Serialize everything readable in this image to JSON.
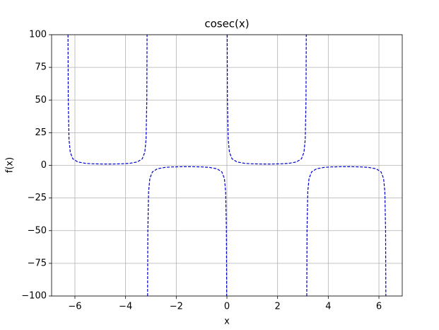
{
  "chart_data": {
    "type": "line",
    "title": "cosec(x)",
    "xlabel": "x",
    "ylabel": "f(x)",
    "x": [
      -6.2732,
      -6.2632,
      -6.2332,
      -6.1832,
      -6.0832,
      -5.8832,
      -5.5832,
      -5.2832,
      -4.9832,
      -4.7124,
      -4.4416,
      -4.1416,
      -3.8416,
      -3.5416,
      -3.3416,
      -3.2416,
      -3.1916,
      -3.1616,
      -3.1516,
      null,
      -3.1316,
      -3.1216,
      -3.0916,
      -3.0416,
      -2.9416,
      -2.7416,
      -2.4416,
      -2.1416,
      -1.8416,
      -1.5708,
      -1.3,
      -1.0,
      -0.7,
      -0.4,
      -0.2,
      -0.1,
      -0.05,
      -0.02,
      -0.01,
      null,
      0.01,
      0.02,
      0.05,
      0.1,
      0.2,
      0.4,
      0.7,
      1.0,
      1.3,
      1.5708,
      1.8416,
      2.1416,
      2.4416,
      2.7416,
      2.9416,
      3.0416,
      3.0916,
      3.1216,
      3.1316,
      null,
      3.1516,
      3.1616,
      3.1916,
      3.2416,
      3.3416,
      3.5416,
      3.8416,
      4.1416,
      4.4416,
      4.7124,
      4.9832,
      5.2832,
      5.5832,
      5.8832,
      6.0832,
      6.1832,
      6.2332,
      6.2632,
      6.2732
    ],
    "values": [
      100.0,
      50.0,
      20.01,
      10.02,
      5.03,
      2.57,
      1.55,
      1.19,
      1.04,
      1.0,
      1.04,
      1.19,
      1.55,
      2.57,
      5.03,
      10.02,
      20.01,
      50.0,
      100.0,
      null,
      -100.0,
      -50.0,
      -20.01,
      -10.02,
      -5.03,
      -2.57,
      -1.55,
      -1.19,
      -1.04,
      -1.0,
      -1.04,
      -1.19,
      -1.55,
      -2.57,
      -5.03,
      -10.02,
      -20.01,
      -50.0,
      -100.0,
      null,
      100.0,
      50.0,
      20.01,
      10.02,
      5.03,
      2.57,
      1.55,
      1.19,
      1.04,
      1.0,
      1.04,
      1.19,
      1.55,
      2.57,
      5.03,
      10.02,
      20.01,
      50.0,
      100.0,
      null,
      -100.0,
      -50.0,
      -20.01,
      -10.02,
      -5.03,
      -2.57,
      -1.55,
      -1.19,
      -1.04,
      -1.0,
      -1.04,
      -1.19,
      -1.55,
      -2.57,
      -5.03,
      -10.02,
      -20.01,
      -50.0,
      -100.0
    ],
    "color": "#0000cc",
    "linestyle": "dashed",
    "xlim": [
      -6.92,
      6.92
    ],
    "xticks": [
      {
        "value": -6,
        "label": "−6"
      },
      {
        "value": -4,
        "label": "−4"
      },
      {
        "value": -2,
        "label": "−2"
      },
      0,
      2,
      4,
      6
    ],
    "ylim": [
      -100,
      100
    ],
    "yticks": [
      {
        "value": -100,
        "label": "−100"
      },
      {
        "value": -75,
        "label": "−75"
      },
      {
        "value": -50,
        "label": "−50"
      },
      {
        "value": -25,
        "label": "−25"
      },
      0,
      25,
      50,
      75,
      100
    ],
    "grid": true
  }
}
